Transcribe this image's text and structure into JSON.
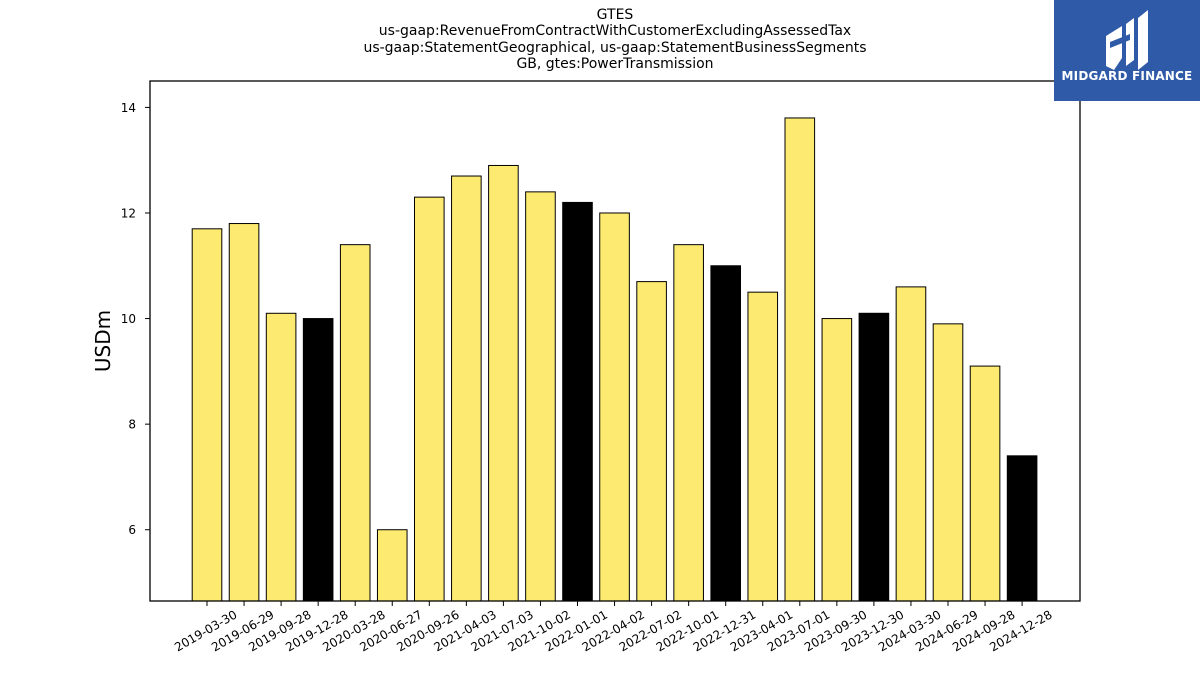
{
  "chart_data": {
    "type": "bar",
    "title_lines": [
      "GTES",
      "us-gaap:RevenueFromContractWithCustomerExcludingAssessedTax",
      "us-gaap:StatementGeographical, us-gaap:StatementBusinessSegments",
      "GB, gtes:PowerTransmission"
    ],
    "ylabel": "USDm",
    "xlabel": "",
    "ylim": [
      4.65,
      14.5
    ],
    "yticks": [
      6,
      8,
      10,
      12,
      14
    ],
    "grid": false,
    "legend": "none",
    "categories": [
      "2019-03-30",
      "2019-06-29",
      "2019-09-28",
      "2019-12-28",
      "2020-03-28",
      "2020-06-27",
      "2020-09-26",
      "2021-04-03",
      "2021-07-03",
      "2021-10-02",
      "2022-01-01",
      "2022-04-02",
      "2022-07-02",
      "2022-10-01",
      "2022-12-31",
      "2023-04-01",
      "2023-07-01",
      "2023-09-30",
      "2023-12-30",
      "2024-03-30",
      "2024-06-29",
      "2024-09-28",
      "2024-12-28"
    ],
    "values": [
      11.7,
      11.8,
      10.1,
      10.0,
      11.4,
      6.0,
      12.3,
      12.7,
      12.9,
      12.4,
      12.2,
      12.0,
      10.7,
      11.4,
      11.0,
      10.5,
      13.8,
      10.0,
      10.1,
      10.6,
      9.9,
      9.1,
      7.4
    ],
    "highlight": [
      false,
      false,
      false,
      true,
      false,
      false,
      false,
      false,
      false,
      false,
      true,
      false,
      false,
      false,
      true,
      false,
      false,
      false,
      true,
      false,
      false,
      false,
      true
    ],
    "colors": {
      "bar": "#fdea71",
      "highlight": "#000000",
      "edge": "#000000"
    }
  },
  "logo": {
    "text": "MIDGARD FINANCE",
    "bg": "#2f5aa8"
  }
}
